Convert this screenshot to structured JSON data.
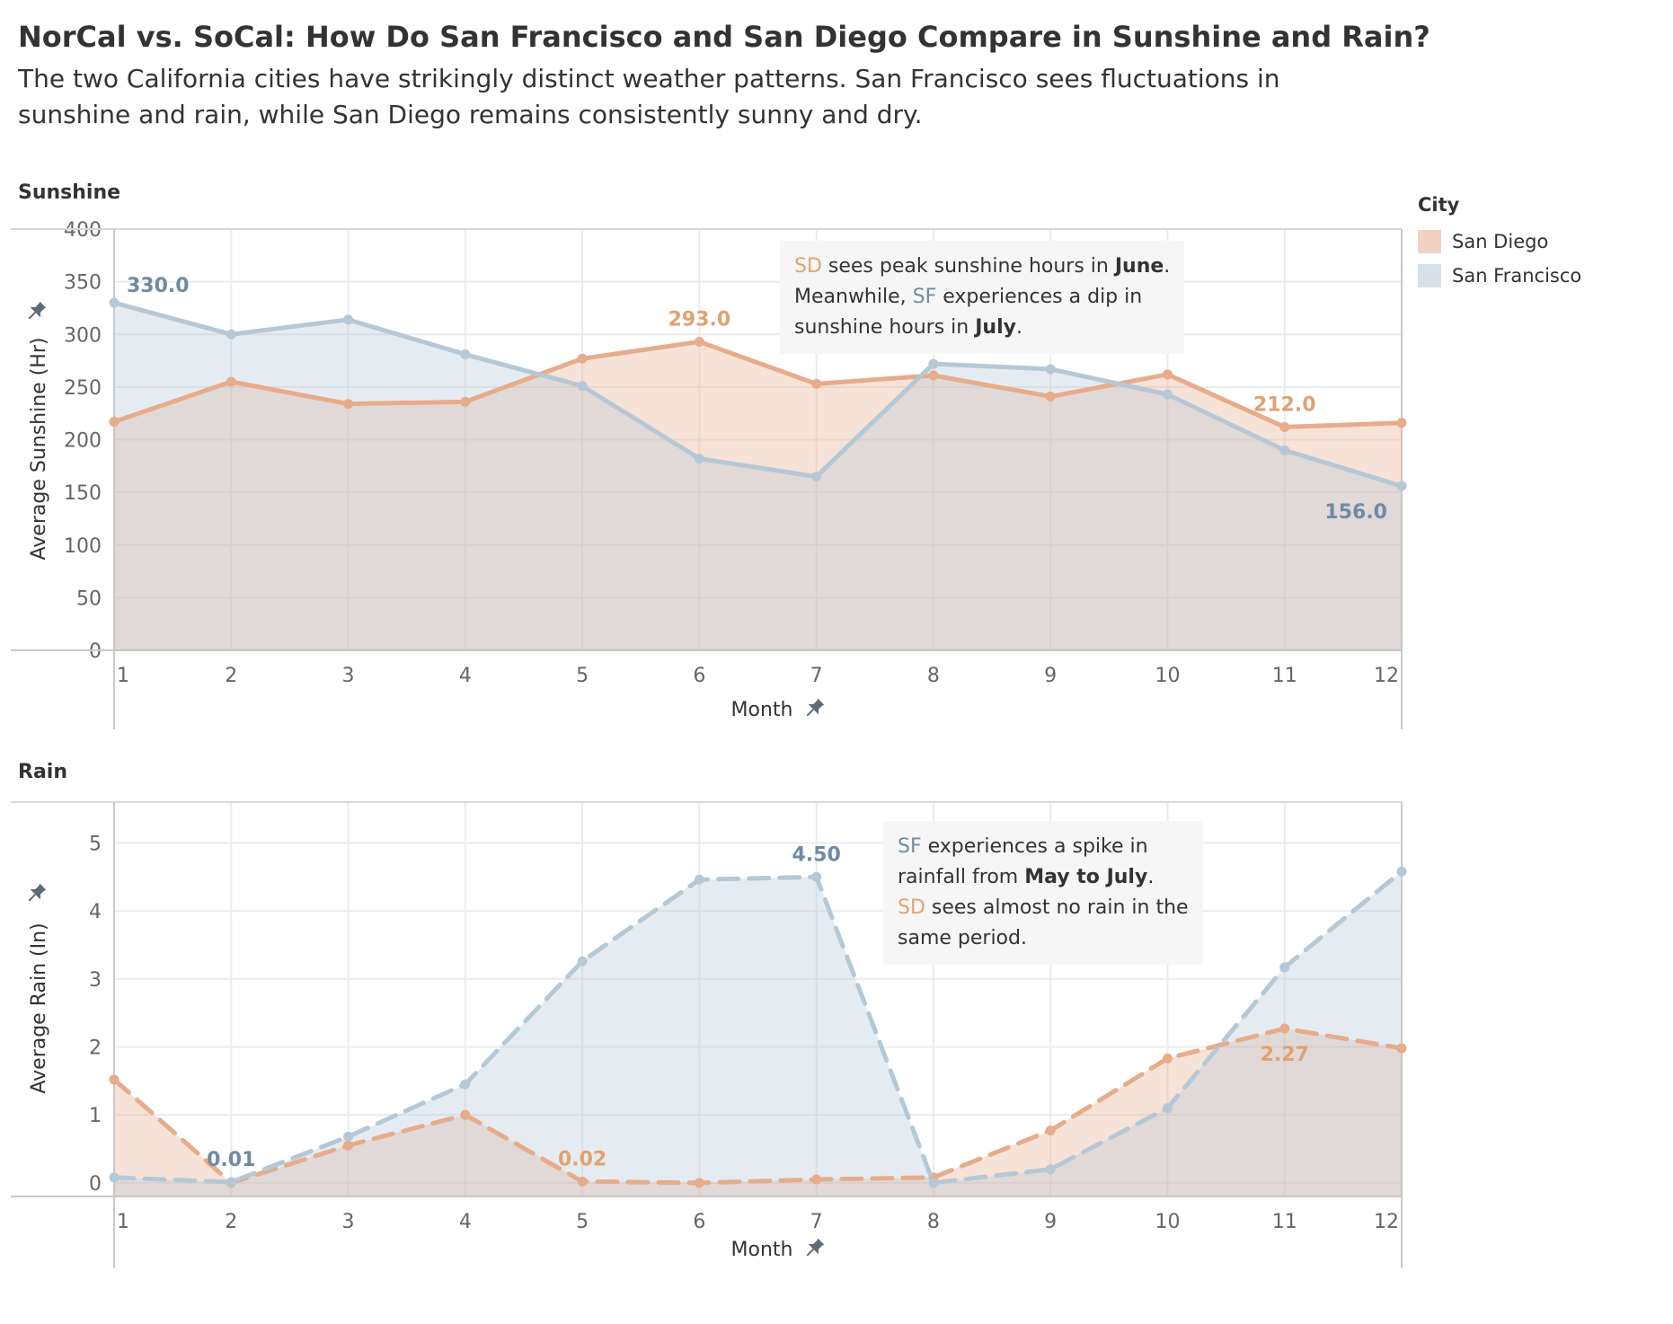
{
  "title": "NorCal vs. SoCal: How Do San Francisco and San Diego Compare in Sunshine and Rain?",
  "subtitle": "The two California cities have strikingly distinct weather patterns. San Francisco sees fluctuations in sunshine and rain, while San Diego remains consistently sunny and dry.",
  "colors": {
    "san_diego": "#e7ac8b",
    "san_francisco": "#b5c8d6",
    "sd_text": "#e0a273",
    "sf_text": "#6f8ba3"
  },
  "legend": {
    "title": "City",
    "items": [
      "San Diego",
      "San Francisco"
    ]
  },
  "annotations": {
    "sunshine": {
      "sd": "SD",
      "t1": " sees peak sunshine hours in ",
      "june": "June",
      "t2": ".",
      "t3": "Meanwhile, ",
      "sf": "SF",
      "t4": " experiences a dip in",
      "t5": "sunshine hours in ",
      "july": "July",
      "t6": "."
    },
    "rain": {
      "sf": "SF",
      "t1": " experiences a spike in",
      "t2": "rainfall from ",
      "period": "May to July",
      "t3": ".",
      "sd": "SD",
      "t4": " sees almost no rain in the",
      "t5": "same period."
    }
  },
  "pin_icon": "pushpin-icon",
  "chart_data": [
    {
      "type": "area",
      "title": "Sunshine",
      "xlabel": "Month",
      "ylabel": "Average Sunshine (Hr)",
      "x": [
        1,
        2,
        3,
        4,
        5,
        6,
        7,
        8,
        9,
        10,
        11,
        12
      ],
      "ylim": [
        0,
        400
      ],
      "yticks": [
        0,
        50,
        100,
        150,
        200,
        250,
        300,
        350,
        400
      ],
      "grid": true,
      "series": [
        {
          "name": "San Diego",
          "line": "solid",
          "values": [
            217,
            255,
            234,
            236,
            277,
            293,
            253,
            261,
            241,
            262,
            212,
            216
          ]
        },
        {
          "name": "San Francisco",
          "line": "solid",
          "values": [
            330,
            300,
            314,
            281,
            251,
            182,
            165,
            272,
            267,
            243,
            190,
            156
          ]
        }
      ],
      "labels": [
        {
          "series": "San Francisco",
          "x": 1,
          "text": "330.0",
          "pos": "above-right"
        },
        {
          "series": "San Diego",
          "x": 6,
          "text": "293.0",
          "pos": "above"
        },
        {
          "series": "San Diego",
          "x": 11,
          "text": "212.0",
          "pos": "above"
        },
        {
          "series": "San Francisco",
          "x": 12,
          "text": "156.0",
          "pos": "below-left"
        }
      ]
    },
    {
      "type": "area",
      "title": "Rain",
      "xlabel": "Month",
      "ylabel": "Average Rain (In)",
      "x": [
        1,
        2,
        3,
        4,
        5,
        6,
        7,
        8,
        9,
        10,
        11,
        12
      ],
      "ylim": [
        -0.2,
        5.6
      ],
      "yticks": [
        0,
        1,
        2,
        3,
        4,
        5
      ],
      "grid": true,
      "series": [
        {
          "name": "San Diego",
          "line": "dashed",
          "values": [
            1.52,
            0.0,
            0.55,
            1.0,
            0.02,
            0.0,
            0.05,
            0.08,
            0.77,
            1.83,
            2.27,
            1.98
          ]
        },
        {
          "name": "San Francisco",
          "line": "dashed",
          "values": [
            0.08,
            0.01,
            0.68,
            1.45,
            3.26,
            4.46,
            4.5,
            0.0,
            0.2,
            1.1,
            3.17,
            4.58
          ]
        }
      ],
      "labels": [
        {
          "series": "San Francisco",
          "x": 2,
          "text": "0.01",
          "pos": "above"
        },
        {
          "series": "San Diego",
          "x": 5,
          "text": "0.02",
          "pos": "above"
        },
        {
          "series": "San Francisco",
          "x": 7,
          "text": "4.50",
          "pos": "above"
        },
        {
          "series": "San Diego",
          "x": 11,
          "text": "2.27",
          "pos": "below"
        }
      ]
    }
  ]
}
